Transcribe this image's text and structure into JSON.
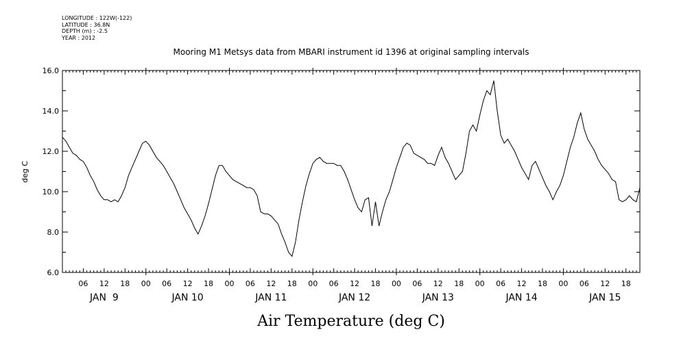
{
  "header": {
    "longitude": "LONGITUDE : 122W(-122)",
    "latitude": "LATITUDE : 36.8N",
    "depth": "DEPTH (m) : -2.5",
    "year": "YEAR : 2012"
  },
  "chart_data": {
    "type": "line",
    "title": "Mooring M1 Metsys data from MBARI instrument id 1396 at original sampling intervals",
    "xlabel": "Air Temperature (deg C)",
    "ylabel": "deg C",
    "xlim": [
      0,
      166
    ],
    "ylim": [
      6.0,
      16.0
    ],
    "x_unit": "hours since Jan 9 00:00, 2012",
    "y_ticks": [
      "6.0",
      "8.0",
      "10.0",
      "12.0",
      "14.0",
      "16.0"
    ],
    "hour_tick_labels": [
      "06",
      "12",
      "18",
      "00",
      "06",
      "12",
      "18",
      "00",
      "06",
      "12",
      "18",
      "00",
      "06",
      "12",
      "18",
      "00",
      "06",
      "12",
      "18",
      "00",
      "06",
      "12",
      "18",
      "00",
      "06",
      "12",
      "18"
    ],
    "day_labels": [
      "JAN  9",
      "JAN 10",
      "JAN 11",
      "JAN 12",
      "JAN 13",
      "JAN 14",
      "JAN 15"
    ],
    "grid": false,
    "series": [
      {
        "values": [
          [
            0,
            12.7
          ],
          [
            1,
            12.5
          ],
          [
            2,
            12.2
          ],
          [
            3,
            11.9
          ],
          [
            4,
            11.8
          ],
          [
            5,
            11.6
          ],
          [
            6,
            11.5
          ],
          [
            7,
            11.2
          ],
          [
            8,
            10.8
          ],
          [
            9,
            10.5
          ],
          [
            10,
            10.1
          ],
          [
            11,
            9.8
          ],
          [
            12,
            9.6
          ],
          [
            13,
            9.6
          ],
          [
            14,
            9.5
          ],
          [
            15,
            9.6
          ],
          [
            16,
            9.5
          ],
          [
            17,
            9.8
          ],
          [
            18,
            10.2
          ],
          [
            19,
            10.8
          ],
          [
            20,
            11.2
          ],
          [
            21,
            11.6
          ],
          [
            22,
            12.0
          ],
          [
            23,
            12.4
          ],
          [
            24,
            12.5
          ],
          [
            25,
            12.3
          ],
          [
            26,
            12.0
          ],
          [
            27,
            11.7
          ],
          [
            28,
            11.5
          ],
          [
            29,
            11.3
          ],
          [
            30,
            11.0
          ],
          [
            31,
            10.7
          ],
          [
            32,
            10.4
          ],
          [
            33,
            10.0
          ],
          [
            34,
            9.6
          ],
          [
            35,
            9.2
          ],
          [
            36,
            8.9
          ],
          [
            37,
            8.6
          ],
          [
            38,
            8.2
          ],
          [
            39,
            7.9
          ],
          [
            40,
            8.3
          ],
          [
            41,
            8.8
          ],
          [
            42,
            9.4
          ],
          [
            43,
            10.1
          ],
          [
            44,
            10.8
          ],
          [
            45,
            11.3
          ],
          [
            46,
            11.3
          ],
          [
            47,
            11.0
          ],
          [
            48,
            10.8
          ],
          [
            49,
            10.6
          ],
          [
            50,
            10.5
          ],
          [
            51,
            10.4
          ],
          [
            52,
            10.3
          ],
          [
            53,
            10.2
          ],
          [
            54,
            10.2
          ],
          [
            55,
            10.1
          ],
          [
            56,
            9.8
          ],
          [
            57,
            9.0
          ],
          [
            58,
            8.9
          ],
          [
            59,
            8.9
          ],
          [
            60,
            8.8
          ],
          [
            61,
            8.6
          ],
          [
            62,
            8.4
          ],
          [
            63,
            7.9
          ],
          [
            64,
            7.5
          ],
          [
            65,
            7.0
          ],
          [
            66,
            6.8
          ],
          [
            67,
            7.5
          ],
          [
            68,
            8.6
          ],
          [
            69,
            9.5
          ],
          [
            70,
            10.3
          ],
          [
            71,
            10.9
          ],
          [
            72,
            11.4
          ],
          [
            73,
            11.6
          ],
          [
            74,
            11.7
          ],
          [
            75,
            11.5
          ],
          [
            76,
            11.4
          ],
          [
            77,
            11.4
          ],
          [
            78,
            11.4
          ],
          [
            79,
            11.3
          ],
          [
            80,
            11.3
          ],
          [
            81,
            11.0
          ],
          [
            82,
            10.6
          ],
          [
            83,
            10.1
          ],
          [
            84,
            9.6
          ],
          [
            85,
            9.2
          ],
          [
            86,
            9.0
          ],
          [
            87,
            9.6
          ],
          [
            88,
            9.7
          ],
          [
            89,
            8.3
          ],
          [
            90,
            9.5
          ],
          [
            91,
            8.3
          ],
          [
            92,
            9.0
          ],
          [
            93,
            9.6
          ],
          [
            94,
            10.0
          ],
          [
            95,
            10.6
          ],
          [
            96,
            11.2
          ],
          [
            97,
            11.7
          ],
          [
            98,
            12.2
          ],
          [
            99,
            12.4
          ],
          [
            100,
            12.3
          ],
          [
            101,
            11.9
          ],
          [
            102,
            11.8
          ],
          [
            103,
            11.7
          ],
          [
            104,
            11.6
          ],
          [
            105,
            11.4
          ],
          [
            106,
            11.4
          ],
          [
            107,
            11.3
          ],
          [
            108,
            11.8
          ],
          [
            109,
            12.2
          ],
          [
            110,
            11.7
          ],
          [
            111,
            11.4
          ],
          [
            112,
            11.0
          ],
          [
            113,
            10.6
          ],
          [
            114,
            10.8
          ],
          [
            115,
            11.0
          ],
          [
            116,
            11.9
          ],
          [
            117,
            13.0
          ],
          [
            118,
            13.3
          ],
          [
            119,
            13.0
          ],
          [
            120,
            13.8
          ],
          [
            121,
            14.5
          ],
          [
            122,
            15.0
          ],
          [
            123,
            14.8
          ],
          [
            124,
            15.5
          ],
          [
            125,
            14.0
          ],
          [
            126,
            12.8
          ],
          [
            127,
            12.4
          ],
          [
            128,
            12.6
          ],
          [
            129,
            12.3
          ],
          [
            130,
            12.0
          ],
          [
            131,
            11.6
          ],
          [
            132,
            11.2
          ],
          [
            133,
            10.9
          ],
          [
            134,
            10.6
          ],
          [
            135,
            11.3
          ],
          [
            136,
            11.5
          ],
          [
            137,
            11.1
          ],
          [
            138,
            10.7
          ],
          [
            139,
            10.3
          ],
          [
            140,
            10.0
          ],
          [
            141,
            9.6
          ],
          [
            142,
            10.0
          ],
          [
            143,
            10.3
          ],
          [
            144,
            10.8
          ],
          [
            145,
            11.5
          ],
          [
            146,
            12.2
          ],
          [
            147,
            12.7
          ],
          [
            148,
            13.4
          ],
          [
            149,
            13.9
          ],
          [
            150,
            13.1
          ],
          [
            151,
            12.6
          ],
          [
            152,
            12.3
          ],
          [
            153,
            12.0
          ],
          [
            154,
            11.6
          ],
          [
            155,
            11.3
          ],
          [
            156,
            11.1
          ],
          [
            157,
            10.9
          ],
          [
            158,
            10.6
          ],
          [
            159,
            10.5
          ],
          [
            160,
            9.6
          ],
          [
            161,
            9.5
          ],
          [
            162,
            9.6
          ],
          [
            163,
            9.8
          ],
          [
            164,
            9.6
          ],
          [
            165,
            9.5
          ],
          [
            166,
            10.2
          ],
          [
            167,
            10.5
          ]
        ]
      }
    ]
  }
}
